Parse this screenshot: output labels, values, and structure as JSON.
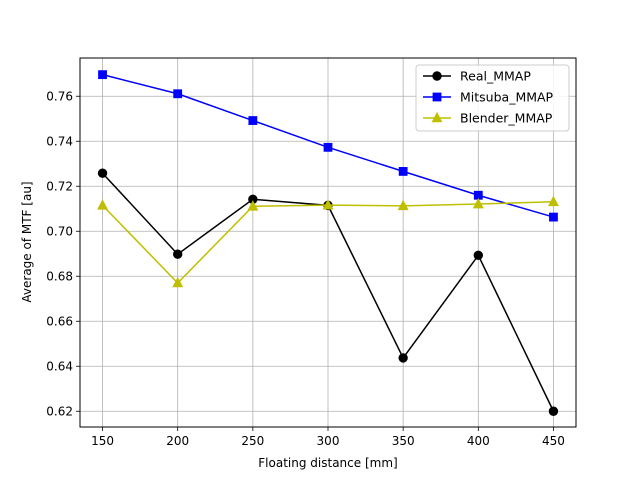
{
  "chart_data": {
    "type": "line",
    "xlabel": "Floating distance [mm]",
    "ylabel": "Average of MTF [au]",
    "x": [
      150,
      200,
      250,
      300,
      350,
      400,
      450
    ],
    "xticks": [
      "150",
      "200",
      "250",
      "300",
      "350",
      "400",
      "450"
    ],
    "yticks": [
      "0.62",
      "0.64",
      "0.66",
      "0.68",
      "0.70",
      "0.72",
      "0.74",
      "0.76"
    ],
    "xlim": [
      135,
      465
    ],
    "ylim": [
      0.613,
      0.777
    ],
    "grid": true,
    "legend_position": "top-right",
    "series": [
      {
        "name": "Real_MMAP",
        "color": "#000000",
        "marker": "circle",
        "values": [
          0.7258,
          0.6898,
          0.7142,
          0.7115,
          0.6437,
          0.6893,
          0.62
        ]
      },
      {
        "name": "Mitsuba_MMAP",
        "color": "#0000ff",
        "marker": "square",
        "values": [
          0.7696,
          0.7611,
          0.7492,
          0.7373,
          0.7266,
          0.716,
          0.7063
        ]
      },
      {
        "name": "Blender_MMAP",
        "color": "#bfbf00",
        "marker": "triangle",
        "values": [
          0.7115,
          0.677,
          0.7111,
          0.7116,
          0.7113,
          0.7121,
          0.7131
        ]
      }
    ]
  }
}
